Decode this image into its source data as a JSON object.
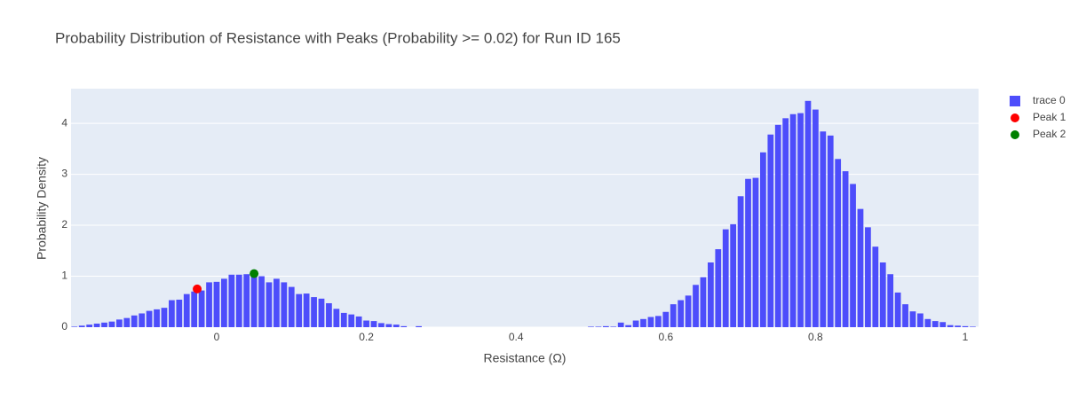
{
  "chart_data": {
    "type": "bar",
    "title": "Probability Distribution of Resistance with Peaks (Probability >= 0.02) for Run ID 165",
    "x_label": "Resistance (Ω)",
    "y_label": "Probability Density",
    "xlim": [
      -0.1945,
      1.0178
    ],
    "ylim": [
      0,
      4.68
    ],
    "xticks": [
      0,
      0.2,
      0.4,
      0.6,
      0.8,
      1
    ],
    "yticks": [
      0,
      1,
      2,
      3,
      4
    ],
    "grid": true,
    "legend": "right",
    "series": [
      {
        "name": "trace 0",
        "type": "bar",
        "color": "#4d4dfb",
        "x": [
          -0.19,
          -0.18,
          -0.17,
          -0.16,
          -0.15,
          -0.14,
          -0.13,
          -0.12,
          -0.11,
          -0.1,
          -0.09,
          -0.08,
          -0.07,
          -0.06,
          -0.05,
          -0.04,
          -0.03,
          -0.02,
          -0.01,
          0,
          0.01,
          0.02,
          0.03,
          0.04,
          0.05,
          0.06,
          0.07,
          0.08,
          0.09,
          0.1,
          0.11,
          0.12,
          0.13,
          0.14,
          0.15,
          0.16,
          0.17,
          0.18,
          0.19,
          0.2,
          0.21,
          0.22,
          0.23,
          0.24,
          0.25,
          0.27,
          0.5,
          0.51,
          0.52,
          0.53,
          0.54,
          0.55,
          0.56,
          0.57,
          0.58,
          0.59,
          0.6,
          0.61,
          0.62,
          0.63,
          0.64,
          0.65,
          0.66,
          0.67,
          0.68,
          0.69,
          0.7,
          0.71,
          0.72,
          0.73,
          0.74,
          0.75,
          0.76,
          0.77,
          0.78,
          0.79,
          0.8,
          0.81,
          0.82,
          0.83,
          0.84,
          0.85,
          0.86,
          0.87,
          0.88,
          0.89,
          0.9,
          0.91,
          0.92,
          0.93,
          0.94,
          0.95,
          0.96,
          0.97,
          0.98,
          0.99,
          1,
          1.01
        ],
        "values": [
          0.01,
          0.03,
          0.05,
          0.07,
          0.09,
          0.11,
          0.15,
          0.18,
          0.23,
          0.27,
          0.32,
          0.35,
          0.38,
          0.53,
          0.54,
          0.65,
          0.7,
          0.72,
          0.88,
          0.89,
          0.95,
          1.03,
          1.03,
          1.04,
          1.05,
          1.0,
          0.88,
          0.95,
          0.88,
          0.79,
          0.65,
          0.66,
          0.59,
          0.56,
          0.47,
          0.36,
          0.28,
          0.25,
          0.21,
          0.13,
          0.12,
          0.08,
          0.06,
          0.05,
          0.02,
          0.02,
          0.01,
          0.01,
          0.02,
          0.01,
          0.09,
          0.04,
          0.13,
          0.16,
          0.2,
          0.22,
          0.3,
          0.45,
          0.53,
          0.62,
          0.83,
          0.98,
          1.27,
          1.53,
          1.92,
          2.02,
          2.57,
          2.91,
          2.93,
          3.43,
          3.78,
          3.97,
          4.1,
          4.18,
          4.2,
          4.44,
          4.27,
          3.84,
          3.76,
          3.3,
          3.06,
          2.81,
          2.32,
          1.96,
          1.58,
          1.27,
          1.04,
          0.68,
          0.45,
          0.31,
          0.27,
          0.16,
          0.12,
          0.1,
          0.04,
          0.03,
          0.02,
          0.01
        ]
      },
      {
        "name": "Peak 1",
        "type": "scatter",
        "color": "#ff0000",
        "x": [
          -0.026
        ],
        "values": [
          0.75
        ]
      },
      {
        "name": "Peak 2",
        "type": "scatter",
        "color": "#008000",
        "x": [
          0.05
        ],
        "values": [
          1.05
        ]
      }
    ]
  }
}
